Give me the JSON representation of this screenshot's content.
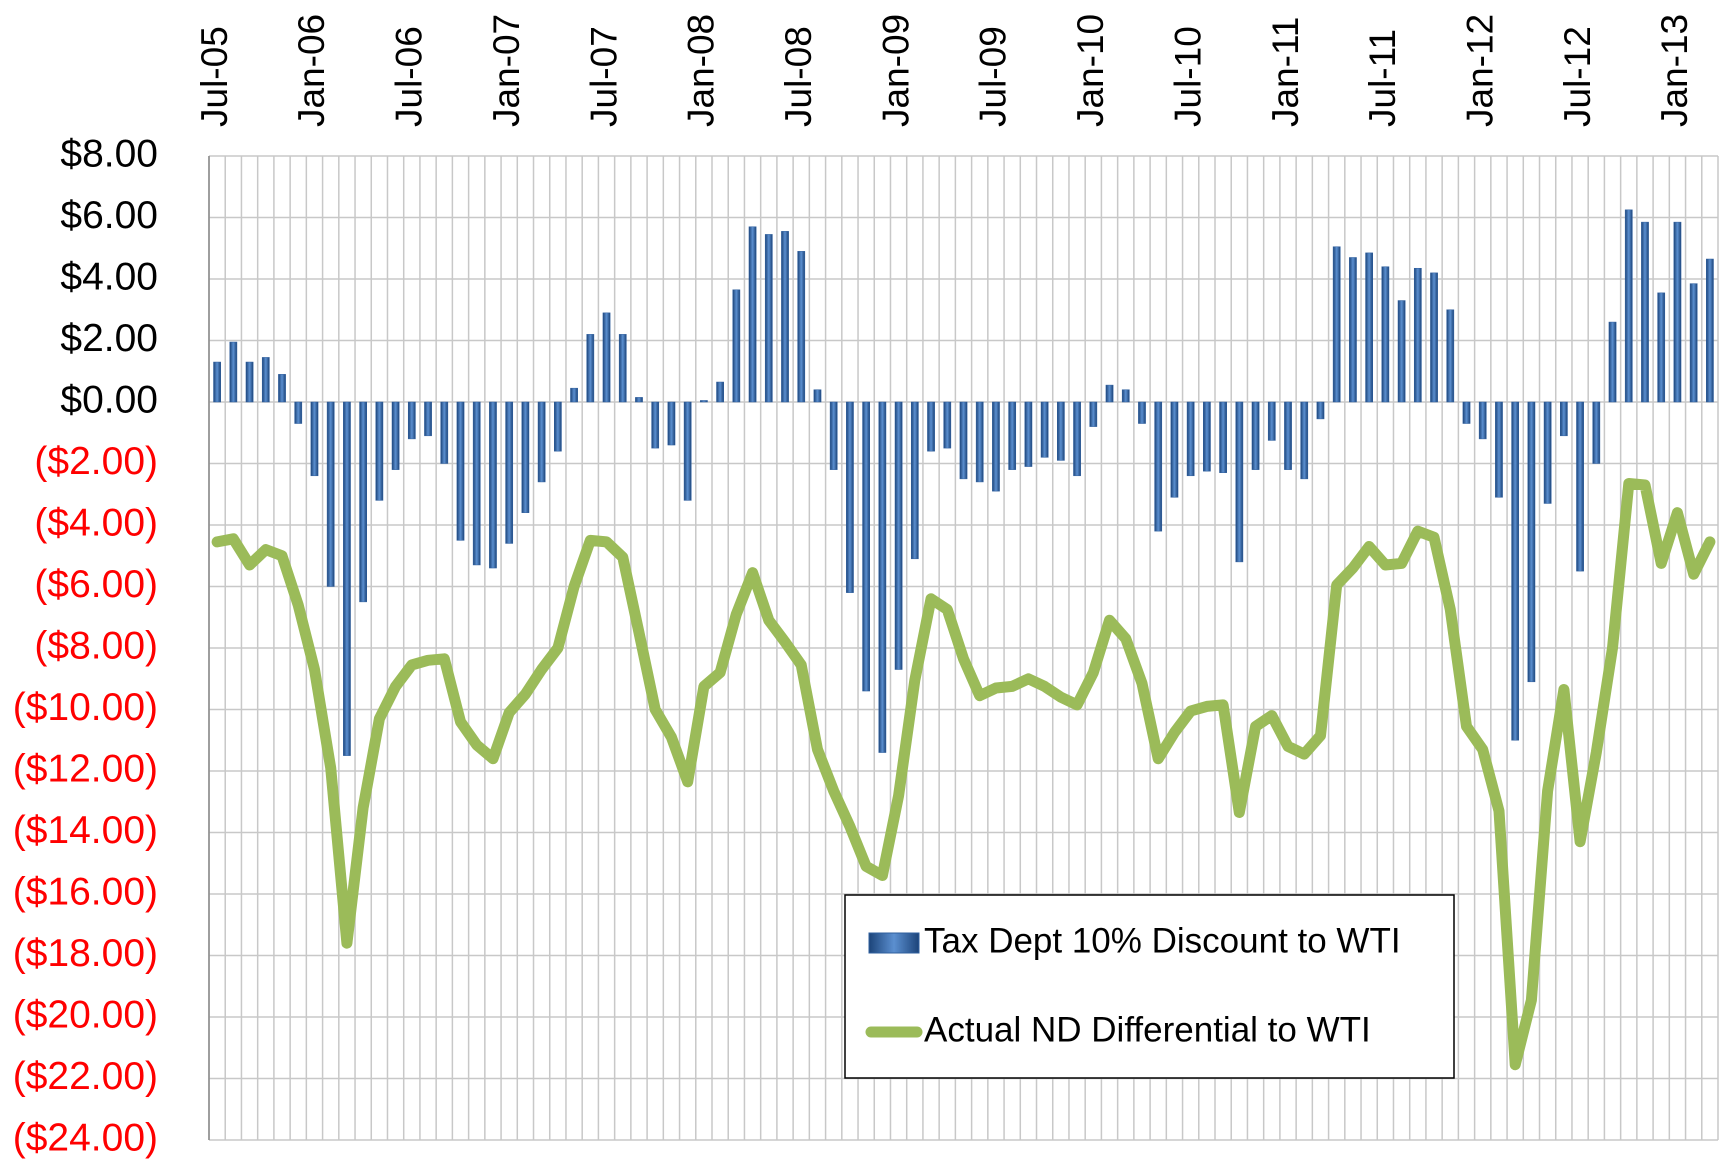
{
  "chart_data": {
    "type": "bar-line",
    "categories": [
      "Jul-05",
      null,
      null,
      null,
      null,
      null,
      "Jan-06",
      null,
      null,
      null,
      null,
      null,
      "Jul-06",
      null,
      null,
      null,
      null,
      null,
      "Jan-07",
      null,
      null,
      null,
      null,
      null,
      "Jul-07",
      null,
      null,
      null,
      null,
      null,
      "Jan-08",
      null,
      null,
      null,
      null,
      null,
      "Jul-08",
      null,
      null,
      null,
      null,
      null,
      "Jan-09",
      null,
      null,
      null,
      null,
      null,
      "Jul-09",
      null,
      null,
      null,
      null,
      null,
      "Jan-10",
      null,
      null,
      null,
      null,
      null,
      "Jul-10",
      null,
      null,
      null,
      null,
      null,
      "Jan-11",
      null,
      null,
      null,
      null,
      null,
      "Jul-11",
      null,
      null,
      null,
      null,
      null,
      "Jan-12",
      null,
      null,
      null,
      null,
      null,
      "Jul-12",
      null,
      null,
      null,
      null,
      null,
      "Jan-13",
      null,
      null
    ],
    "series": [
      {
        "name": "Tax Dept 10% Discount to WTI",
        "type": "bar",
        "color": "#2f5f9e",
        "values": [
          1.3,
          1.95,
          1.3,
          1.45,
          0.9,
          -0.7,
          -2.4,
          -6.0,
          -11.5,
          -6.5,
          -3.2,
          -2.2,
          -1.2,
          -1.1,
          -2.0,
          -4.5,
          -5.3,
          -5.4,
          -4.6,
          -3.6,
          -2.6,
          -1.6,
          0.45,
          2.2,
          2.9,
          2.2,
          0.15,
          -1.5,
          -1.4,
          -3.2,
          0.05,
          0.65,
          3.65,
          5.7,
          5.45,
          5.55,
          4.9,
          0.4,
          -2.2,
          -6.2,
          -9.4,
          -11.4,
          -8.7,
          -5.1,
          -1.6,
          -1.5,
          -2.5,
          -2.6,
          -2.9,
          -2.2,
          -2.1,
          -1.8,
          -1.9,
          -2.4,
          -0.8,
          0.55,
          0.4,
          -0.7,
          -4.2,
          -3.1,
          -2.4,
          -2.25,
          -2.3,
          -5.2,
          -2.2,
          -1.25,
          -2.2,
          -2.5,
          -0.55,
          5.05,
          4.7,
          4.85,
          4.4,
          3.3,
          4.35,
          4.2,
          3.0,
          -0.7,
          -1.2,
          -3.1,
          -11.0,
          -9.1,
          -3.3,
          -1.1,
          -5.5,
          -2.0,
          2.6,
          6.25,
          5.85,
          3.55,
          5.85,
          3.85,
          4.65
        ]
      },
      {
        "name": "Actual ND Differential to WTI",
        "type": "line",
        "color": "#9bbb59",
        "values": [
          -4.55,
          -4.45,
          -5.3,
          -4.8,
          -5.0,
          -6.6,
          -8.7,
          -11.9,
          -17.6,
          -13.2,
          -10.3,
          -9.25,
          -8.55,
          -8.4,
          -8.35,
          -10.4,
          -11.15,
          -11.6,
          -10.1,
          -9.5,
          -8.7,
          -8.0,
          -6.0,
          -4.5,
          -4.55,
          -5.05,
          -7.5,
          -10.0,
          -10.9,
          -12.35,
          -9.25,
          -8.8,
          -6.9,
          -5.55,
          -7.1,
          -7.8,
          -8.55,
          -11.3,
          -12.65,
          -13.8,
          -15.1,
          -15.4,
          -12.8,
          -9.05,
          -6.4,
          -6.75,
          -8.35,
          -9.55,
          -9.3,
          -9.25,
          -9.0,
          -9.25,
          -9.6,
          -9.85,
          -8.8,
          -7.1,
          -7.7,
          -9.15,
          -11.6,
          -10.75,
          -10.05,
          -9.9,
          -9.85,
          -13.35,
          -10.55,
          -10.2,
          -11.2,
          -11.45,
          -10.85,
          -5.95,
          -5.4,
          -4.7,
          -5.3,
          -5.25,
          -4.2,
          -4.4,
          -6.75,
          -10.55,
          -11.3,
          -13.3,
          -21.55,
          -19.45,
          -12.65,
          -9.35,
          -14.3,
          -11.4,
          -8.0,
          -2.65,
          -2.7,
          -5.25,
          -3.6,
          -5.6,
          -4.55
        ]
      }
    ],
    "ylim": [
      -24,
      8
    ],
    "yticks": [
      {
        "value": -24,
        "label": "($24.00)"
      },
      {
        "value": -22,
        "label": "($22.00)"
      },
      {
        "value": -20,
        "label": "($20.00)"
      },
      {
        "value": -18,
        "label": "($18.00)"
      },
      {
        "value": -16,
        "label": "($16.00)"
      },
      {
        "value": -14,
        "label": "($14.00)"
      },
      {
        "value": -12,
        "label": "($12.00)"
      },
      {
        "value": -10,
        "label": "($10.00)"
      },
      {
        "value": -8,
        "label": "($8.00)"
      },
      {
        "value": -6,
        "label": "($6.00)"
      },
      {
        "value": -4,
        "label": "($4.00)"
      },
      {
        "value": -2,
        "label": "($2.00)"
      },
      {
        "value": 0,
        "label": "$0.00"
      },
      {
        "value": 2,
        "label": "$2.00"
      },
      {
        "value": 4,
        "label": "$4.00"
      },
      {
        "value": 6,
        "label": "$6.00"
      },
      {
        "value": 8,
        "label": "$8.00"
      }
    ],
    "negative_label_color": "#ff0000",
    "grid": true,
    "legend": "bottom-right"
  }
}
